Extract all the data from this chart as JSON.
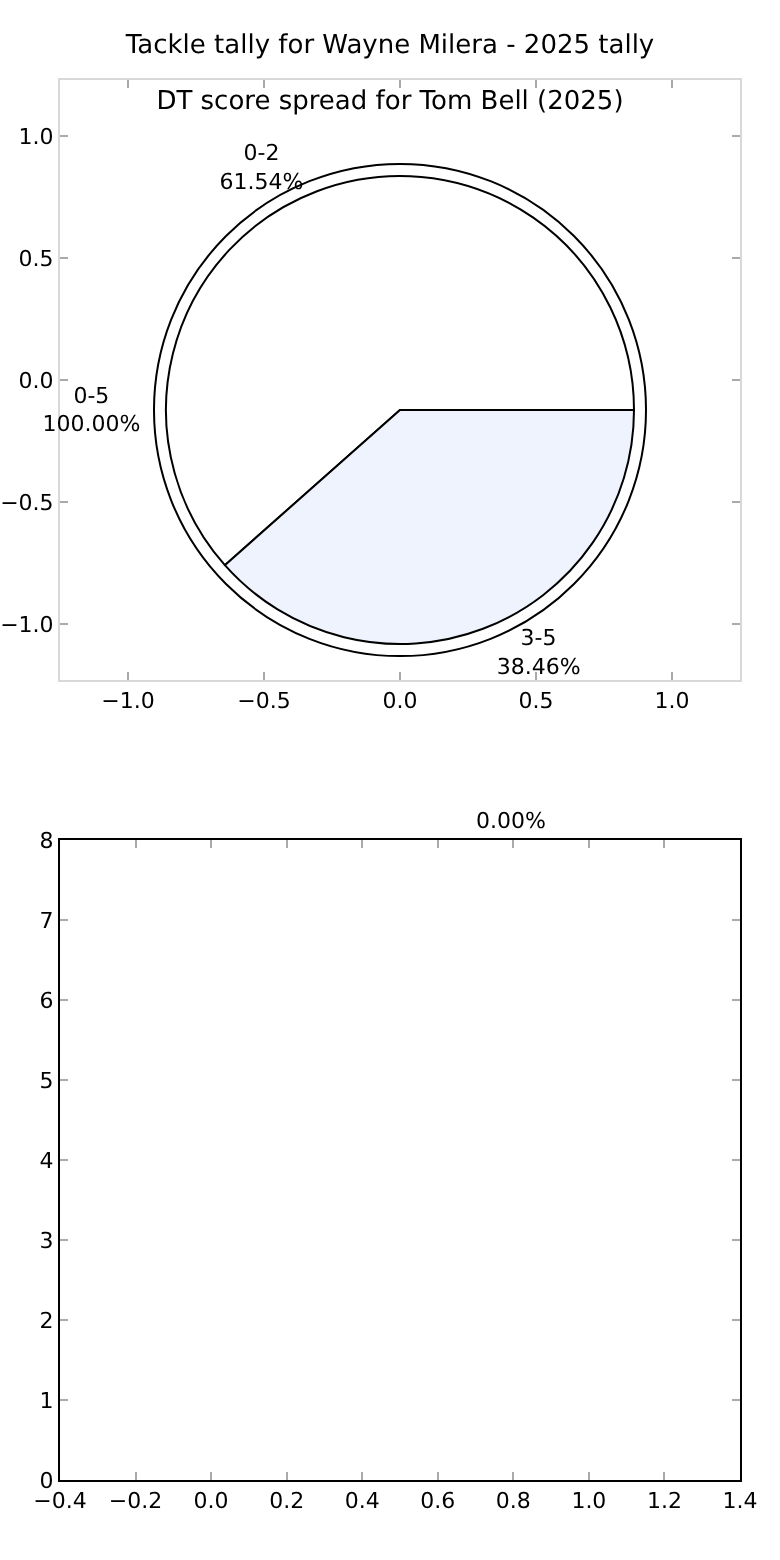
{
  "chart_data": [
    {
      "type": "scatter",
      "xlim": [
        -1.25,
        1.25
      ],
      "ylim": [
        -1.23,
        1.23
      ],
      "xticks": [
        {
          "value": -1,
          "label": "−1.0"
        },
        {
          "value": -0.5,
          "label": "−0.5"
        },
        {
          "value": 0,
          "label": "0.0"
        },
        {
          "value": 0.5,
          "label": "0.5"
        },
        {
          "value": 1,
          "label": "1.0"
        }
      ],
      "yticks": [
        {
          "value": -1,
          "label": "−1.0"
        },
        {
          "value": -0.5,
          "label": "−0.5"
        },
        {
          "value": 0,
          "label": "0.0"
        },
        {
          "value": 0.5,
          "label": "0.5"
        },
        {
          "value": 1,
          "label": "1.0"
        }
      ]
    },
    {
      "type": "pie",
      "title": "Tackle tally for Wayne Milera - 2025 tally",
      "categories": [
        "0-5"
      ],
      "values": [
        100
      ],
      "colors": [
        "#ffffff"
      ],
      "value_labels": [
        "100.00%"
      ]
    },
    {
      "type": "pie",
      "title": "DT score spread for Tom Bell (2025)",
      "categories": [
        "0-2",
        "3-5"
      ],
      "values": [
        61.54,
        38.46
      ],
      "colors": [
        "#ffffff",
        "#eef3fd"
      ],
      "value_labels": [
        "61.54%",
        "38.46%"
      ]
    },
    {
      "type": "scatter",
      "annotations": [
        "0.00%"
      ],
      "xlim": [
        -0.4,
        1.4
      ],
      "ylim": [
        0,
        8
      ],
      "xticks": [
        {
          "value": -0.4,
          "label": "−0.4"
        },
        {
          "value": -0.2,
          "label": "−0.2"
        },
        {
          "value": 0,
          "label": "0.0"
        },
        {
          "value": 0.2,
          "label": "0.2"
        },
        {
          "value": 0.4,
          "label": "0.4"
        },
        {
          "value": 0.6,
          "label": "0.6"
        },
        {
          "value": 0.8,
          "label": "0.8"
        },
        {
          "value": 1,
          "label": "1.0"
        },
        {
          "value": 1.2,
          "label": "1.2"
        },
        {
          "value": 1.4,
          "label": "1.4"
        }
      ],
      "yticks": [
        0,
        1,
        2,
        3,
        4,
        5,
        6,
        7,
        8
      ]
    }
  ]
}
